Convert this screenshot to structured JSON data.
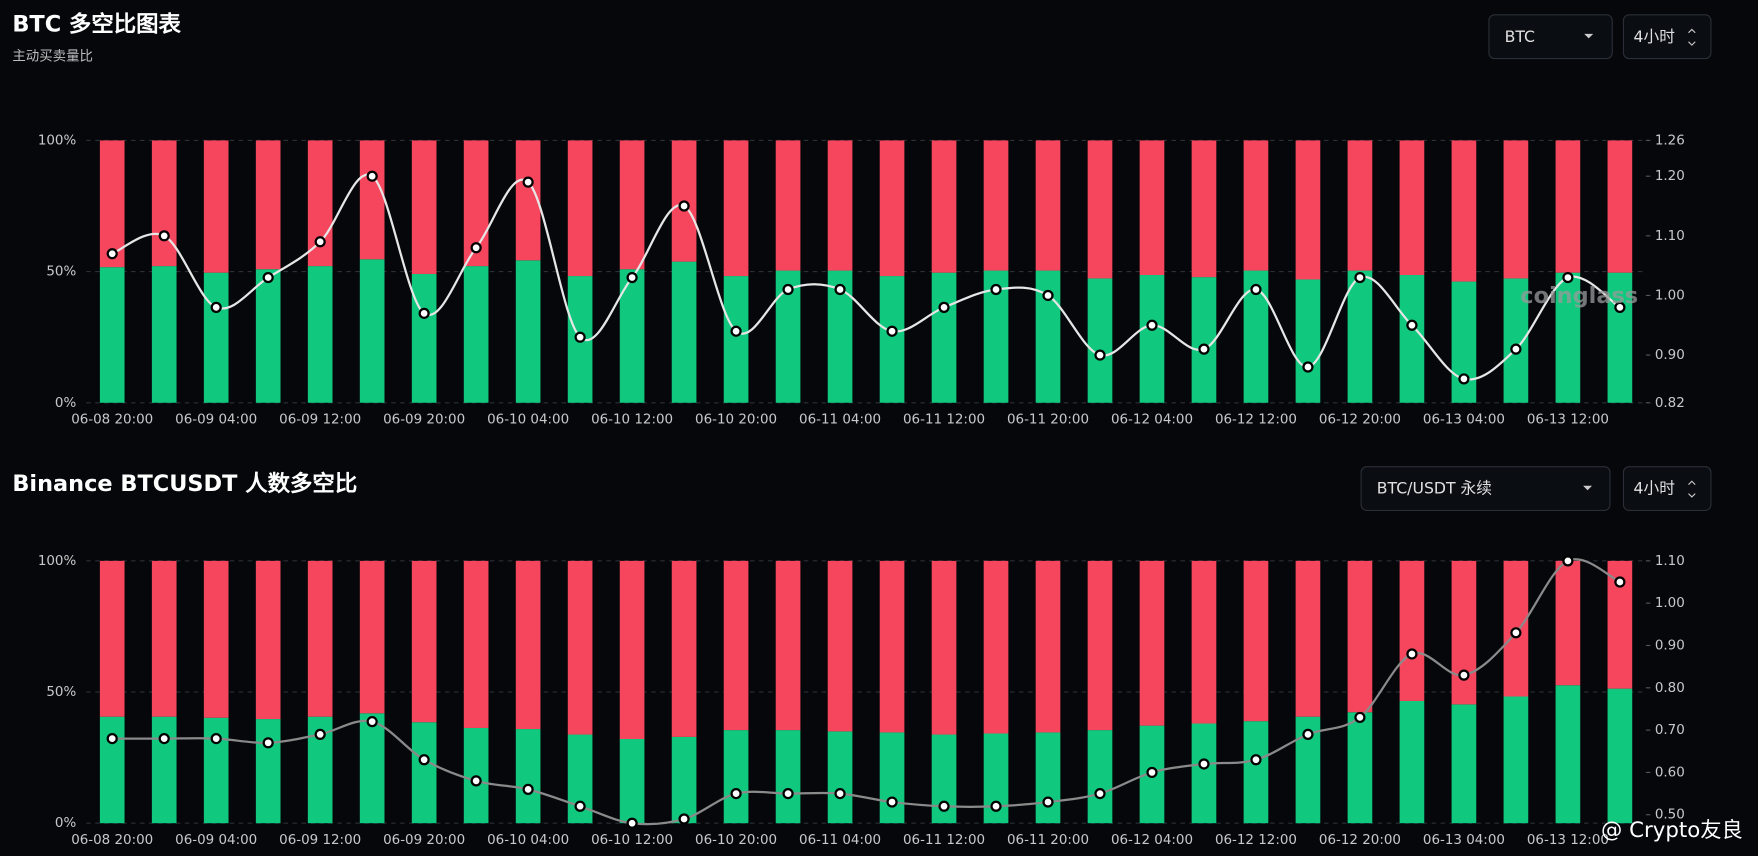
{
  "chart_data": [
    {
      "type": "bar",
      "stacked": true,
      "title": "BTC 多空比图表",
      "subtitle": "主动买卖量比",
      "categories": [
        "06-08 20:00",
        null,
        "06-09 04:00",
        null,
        "06-09 12:00",
        null,
        "06-09 20:00",
        null,
        "06-10 04:00",
        null,
        "06-10 12:00",
        null,
        "06-10 20:00",
        null,
        "06-11 04:00",
        null,
        "06-11 12:00",
        null,
        "06-11 20:00",
        null,
        "06-12 04:00",
        null,
        "06-12 12:00",
        null,
        "06-12 20:00",
        null,
        "06-13 04:00",
        null,
        "06-13 12:00",
        null
      ],
      "series": [
        {
          "color": "#10c87e",
          "values": [
            51.7,
            52.1,
            49.6,
            50.9,
            52.1,
            54.7,
            49.1,
            52.1,
            54.3,
            48.3,
            50.9,
            53.8,
            48.3,
            50.4,
            50.4,
            48.3,
            49.6,
            50.4,
            50.4,
            47.4,
            48.7,
            47.9,
            50.4,
            47.0,
            50.4,
            48.7,
            46.2,
            47.4,
            49.6,
            49.6
          ]
        },
        {
          "color": "#f6465d",
          "values": [
            48.3,
            47.9,
            50.4,
            49.1,
            47.9,
            45.3,
            50.9,
            47.9,
            45.7,
            51.7,
            49.1,
            46.2,
            51.7,
            49.6,
            49.6,
            51.7,
            50.4,
            49.6,
            49.6,
            52.6,
            51.3,
            52.1,
            49.6,
            53.0,
            49.6,
            51.3,
            53.8,
            52.6,
            50.4,
            50.4
          ]
        },
        {
          "type": "line",
          "axis": "y2",
          "color": "#e6e6e6",
          "values": [
            1.07,
            1.1,
            0.98,
            1.03,
            1.09,
            1.2,
            0.97,
            1.08,
            1.19,
            0.93,
            1.03,
            1.15,
            0.94,
            1.01,
            1.01,
            0.94,
            0.98,
            1.01,
            1.0,
            0.9,
            0.95,
            0.91,
            1.01,
            0.88,
            1.03,
            0.95,
            0.86,
            0.91,
            1.03,
            0.98
          ]
        }
      ],
      "ylim": [
        0,
        100
      ],
      "yticks": [
        {
          "value": 0,
          "label": "0%"
        },
        {
          "value": 50,
          "label": "50%"
        },
        {
          "value": 100,
          "label": "100%"
        }
      ],
      "y2lim": [
        0.82,
        1.26
      ],
      "y2ticks": [
        0.82,
        {
          "value": 0.9,
          "label": "0.90"
        },
        {
          "value": 1.0,
          "label": "1.00"
        },
        {
          "value": 1.1,
          "label": "1.10"
        },
        {
          "value": 1.2,
          "label": "1.20"
        },
        1.26
      ],
      "grid": true
    },
    {
      "type": "bar",
      "stacked": true,
      "title": "Binance BTCUSDT 人数多空比",
      "categories": [
        "06-08 20:00",
        null,
        "06-09 04:00",
        null,
        "06-09 12:00",
        null,
        "06-09 20:00",
        null,
        "06-10 04:00",
        null,
        "06-10 12:00",
        null,
        "06-10 20:00",
        null,
        "06-11 04:00",
        null,
        "06-11 12:00",
        null,
        "06-11 20:00",
        null,
        "06-12 04:00",
        null,
        "06-12 12:00",
        null,
        "06-12 20:00",
        null,
        "06-13 04:00",
        null,
        "06-13 12:00",
        null
      ],
      "series": [
        {
          "color": "#10c87e",
          "values": [
            40.6,
            40.6,
            40.2,
            39.7,
            40.6,
            41.9,
            38.5,
            36.3,
            35.9,
            33.8,
            32.1,
            32.9,
            35.5,
            35.5,
            35.0,
            34.6,
            33.8,
            34.2,
            34.6,
            35.5,
            37.2,
            38.0,
            38.9,
            40.6,
            42.3,
            46.6,
            45.3,
            48.3,
            52.6,
            51.3
          ]
        },
        {
          "color": "#f6465d",
          "values": [
            59.4,
            59.4,
            59.8,
            60.3,
            59.4,
            58.1,
            61.5,
            63.7,
            64.1,
            66.2,
            67.9,
            67.1,
            64.5,
            64.5,
            65.0,
            65.4,
            66.2,
            65.8,
            65.4,
            64.5,
            62.8,
            62.0,
            61.1,
            59.4,
            57.7,
            53.4,
            54.7,
            51.7,
            47.4,
            48.7
          ]
        },
        {
          "type": "line",
          "axis": "y2",
          "color": "#8a8a8a",
          "values": [
            0.68,
            0.68,
            0.68,
            0.67,
            0.69,
            0.72,
            0.63,
            0.58,
            0.56,
            0.52,
            0.48,
            0.49,
            0.55,
            0.55,
            0.55,
            0.53,
            0.52,
            0.52,
            0.53,
            0.55,
            0.6,
            0.62,
            0.63,
            0.69,
            0.73,
            0.88,
            0.83,
            0.93,
            1.1,
            1.05
          ]
        }
      ],
      "ylim": [
        0,
        100
      ],
      "yticks": [
        {
          "value": 0,
          "label": "0%"
        },
        {
          "value": 50,
          "label": "50%"
        },
        {
          "value": 100,
          "label": "100%"
        }
      ],
      "y2lim": [
        0.48,
        1.1
      ],
      "y2ticks": [
        {
          "value": 0.5,
          "label": "0.50"
        },
        {
          "value": 0.6,
          "label": "0.60"
        },
        {
          "value": 0.7,
          "label": "0.70"
        },
        {
          "value": 0.8,
          "label": "0.80"
        },
        {
          "value": 0.9,
          "label": "0.90"
        },
        {
          "value": 1.0,
          "label": "1.00"
        },
        {
          "value": 1.1,
          "label": "1.10"
        }
      ],
      "grid": true
    }
  ],
  "controls": [
    {
      "symbol": "BTC",
      "interval": "4小时"
    },
    {
      "symbol": "BTC/USDT 永续",
      "interval": "4小时"
    }
  ],
  "watermarks": [
    "coinglass",
    "@ Crypto友良"
  ]
}
